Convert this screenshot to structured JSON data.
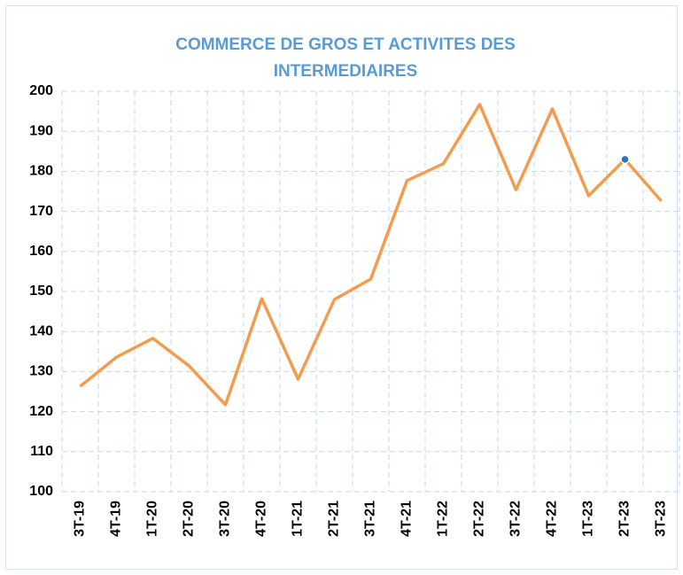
{
  "chart_data": {
    "type": "line",
    "title": [
      "COMMERCE DE GROS ET ACTIVITES DES",
      "INTERMEDIAIRES"
    ],
    "categories": [
      "3T-19",
      "4T-19",
      "1T-20",
      "2T-20",
      "3T-20",
      "4T-20",
      "1T-21",
      "2T-21",
      "3T-21",
      "4T-21",
      "1T-22",
      "2T-22",
      "3T-22",
      "4T-22",
      "1T-23",
      "2T-23",
      "3T-23"
    ],
    "series": [
      {
        "name": "COMMERCE DE GROS ET ACTIVITES DES INTERMEDIAIRES",
        "color": "#f39c4f",
        "values": [
          126.3,
          133.6,
          138.3,
          131.4,
          121.7,
          148.2,
          128.1,
          148.0,
          153.1,
          177.7,
          181.9,
          196.7,
          175.4,
          195.6,
          173.9,
          183.0,
          172.6
        ]
      }
    ],
    "marked_category": "2T-23",
    "marker_color": "#2e75b6",
    "ylim": [
      100,
      200
    ],
    "yticks": [
      100,
      110,
      120,
      130,
      140,
      150,
      160,
      170,
      180,
      190,
      200
    ],
    "grid": true
  }
}
